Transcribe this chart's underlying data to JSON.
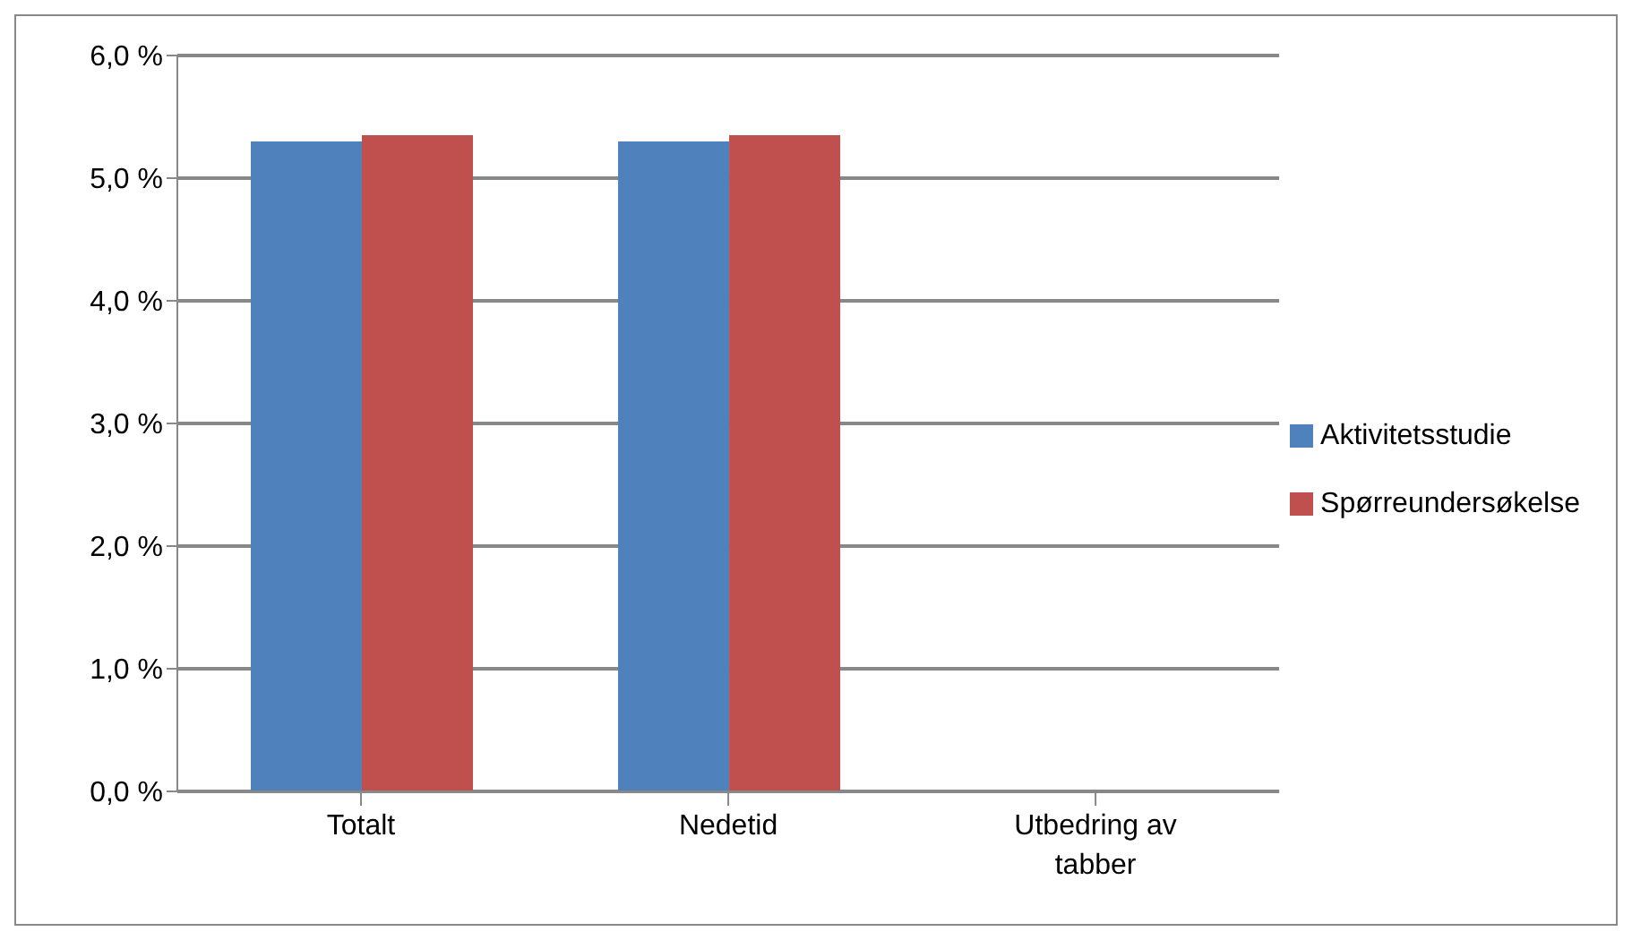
{
  "chart_data": {
    "type": "bar",
    "categories": [
      "Totalt",
      "Nedetid",
      "Utbedring av tabber"
    ],
    "series": [
      {
        "name": "Aktivitetsstudie",
        "color": "#4f81bd",
        "values": [
          5.3,
          5.3,
          null
        ]
      },
      {
        "name": "Spørreundersøkelse",
        "color": "#c0504d",
        "values": [
          5.35,
          5.35,
          null
        ]
      }
    ],
    "ylim": [
      0,
      6
    ],
    "yticks": [
      {
        "value": 0,
        "label": "0,0 %"
      },
      {
        "value": 1,
        "label": "1,0 %"
      },
      {
        "value": 2,
        "label": "2,0 %"
      },
      {
        "value": 3,
        "label": "3,0 %"
      },
      {
        "value": 4,
        "label": "4,0 %"
      },
      {
        "value": 5,
        "label": "5,0 %"
      },
      {
        "value": 6,
        "label": "6,0 %"
      }
    ],
    "grid": "y",
    "legend": "right"
  }
}
